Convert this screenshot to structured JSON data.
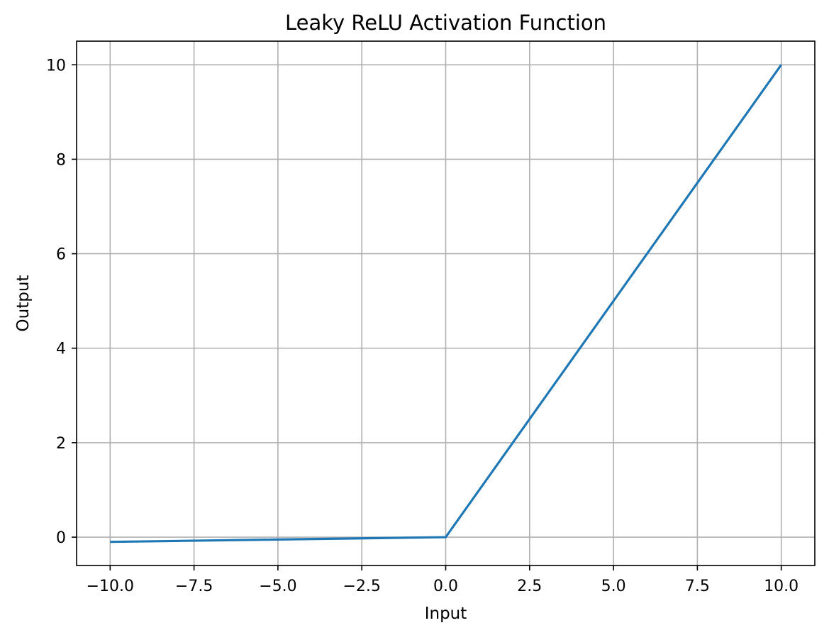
{
  "chart_data": {
    "type": "line",
    "title": "Leaky ReLU Activation Function",
    "xlabel": "Input",
    "ylabel": "Output",
    "xlim": [
      -11.0,
      11.0
    ],
    "ylim": [
      -0.6,
      10.5
    ],
    "x_ticks": [
      -10.0,
      -7.5,
      -5.0,
      -2.5,
      0.0,
      2.5,
      5.0,
      7.5,
      10.0
    ],
    "x_tick_labels": [
      "−10.0",
      "−7.5",
      "−5.0",
      "−2.5",
      "0.0",
      "2.5",
      "5.0",
      "7.5",
      "10.0"
    ],
    "y_ticks": [
      0,
      2,
      4,
      6,
      8,
      10
    ],
    "y_tick_labels": [
      "0",
      "2",
      "4",
      "6",
      "8",
      "10"
    ],
    "grid": true,
    "series": [
      {
        "color": "#1f77b4",
        "x": [
          -10.0,
          0.0,
          10.0
        ],
        "y": [
          -0.1,
          0.0,
          10.0
        ]
      }
    ]
  }
}
